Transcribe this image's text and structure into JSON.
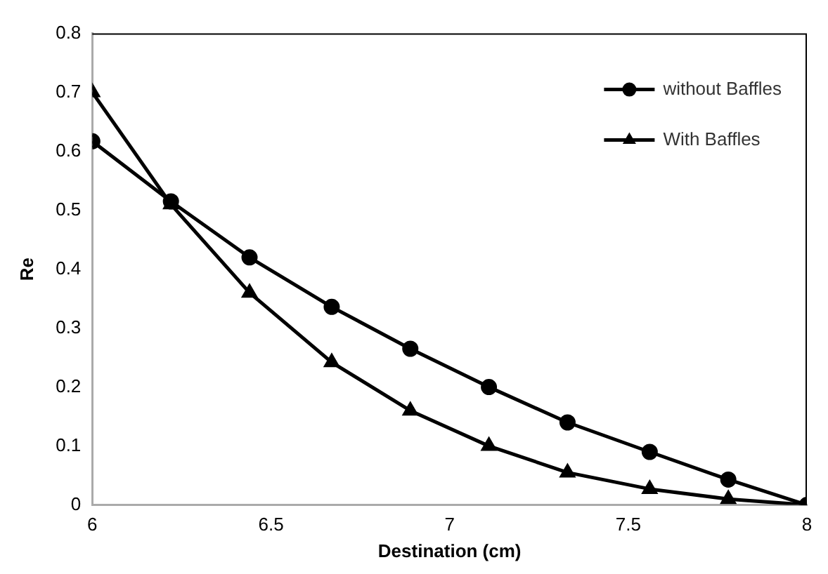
{
  "chart_data": {
    "type": "line",
    "xlabel": "Destination (cm)",
    "ylabel": "Re",
    "x": [
      6,
      6.22,
      6.44,
      6.67,
      6.89,
      7.11,
      7.33,
      7.56,
      7.78,
      8
    ],
    "series": [
      {
        "name": "without Baffles",
        "color": "#000000",
        "marker": "circle",
        "values": [
          0.617,
          0.515,
          0.42,
          0.336,
          0.265,
          0.2,
          0.14,
          0.09,
          0.043,
          0
        ]
      },
      {
        "name": "With Baffles",
        "color": "#000000",
        "marker": "triangle",
        "values": [
          0.7,
          0.51,
          0.36,
          0.242,
          0.16,
          0.1,
          0.055,
          0.027,
          0.01,
          0
        ]
      }
    ],
    "xlim": [
      6,
      8
    ],
    "xticks": [
      6,
      6.5,
      7,
      7.5,
      8
    ],
    "ylim": [
      0,
      0.8
    ],
    "yticks": [
      0,
      0.1,
      0.2,
      0.3,
      0.4,
      0.5,
      0.6,
      0.7,
      0.8
    ],
    "grid": false,
    "legend": "top right",
    "line_style": "solid"
  }
}
